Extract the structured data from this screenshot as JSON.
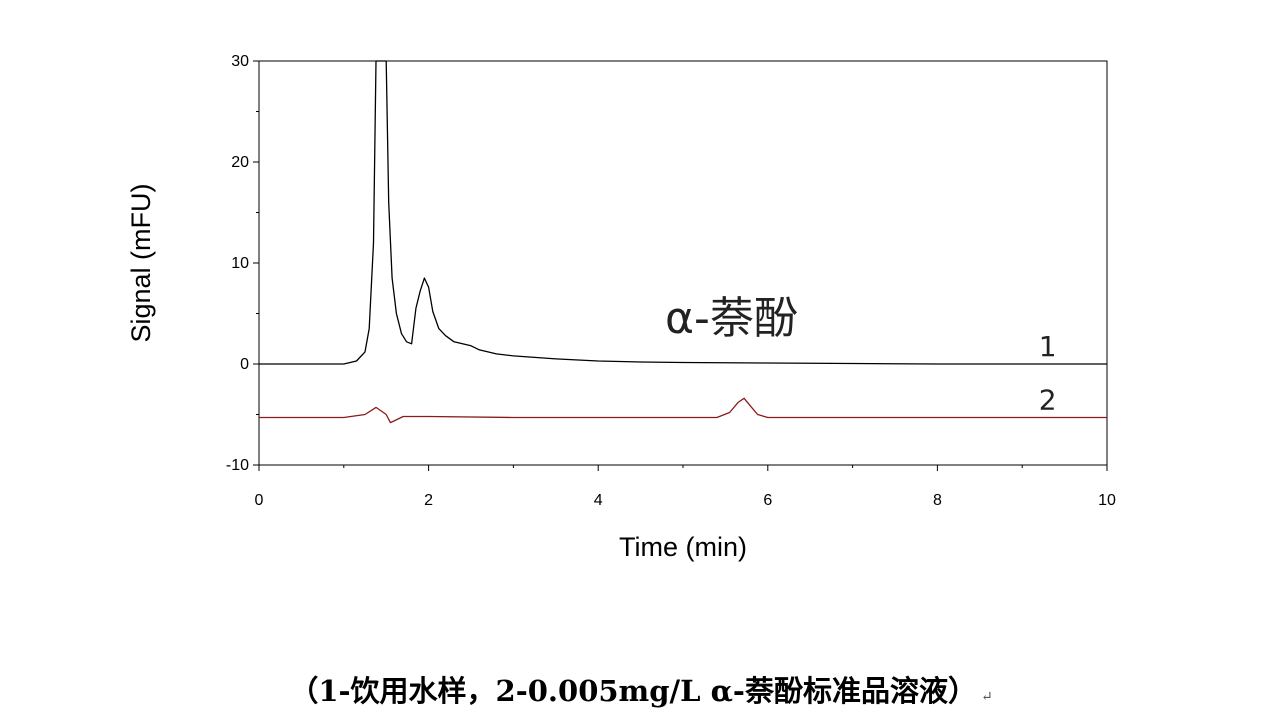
{
  "chart_data": {
    "type": "line",
    "title": "",
    "xlabel": "Time (min)",
    "ylabel": "Signal (mFU)",
    "xlim": [
      0,
      10
    ],
    "ylim": [
      -10,
      30
    ],
    "xticks": [
      0,
      2,
      4,
      6,
      8,
      10
    ],
    "yticks": [
      -10,
      0,
      10,
      20,
      30
    ],
    "grid": false,
    "annotation": "α-萘酚",
    "series": [
      {
        "name": "1",
        "color": "#000000",
        "x": [
          0.0,
          0.5,
          1.0,
          1.15,
          1.25,
          1.3,
          1.35,
          1.38,
          1.42,
          1.46,
          1.5,
          1.53,
          1.57,
          1.62,
          1.68,
          1.74,
          1.8,
          1.85,
          1.9,
          1.95,
          2.0,
          2.05,
          2.12,
          2.2,
          2.3,
          2.4,
          2.5,
          2.6,
          2.8,
          3.0,
          3.5,
          4.0,
          4.5,
          5.0,
          6.0,
          7.0,
          8.0,
          9.0,
          10.0
        ],
        "y": [
          0.0,
          0.0,
          0.0,
          0.3,
          1.2,
          3.5,
          12.0,
          30.0,
          30.0,
          30.0,
          30.0,
          16.0,
          8.5,
          5.0,
          3.0,
          2.2,
          2.0,
          5.5,
          7.2,
          8.5,
          7.6,
          5.2,
          3.5,
          2.8,
          2.2,
          2.0,
          1.8,
          1.4,
          1.0,
          0.8,
          0.5,
          0.3,
          0.2,
          0.15,
          0.1,
          0.05,
          0.0,
          0.0,
          0.0
        ]
      },
      {
        "name": "2",
        "color": "#8b1a1a",
        "x": [
          0.0,
          1.0,
          1.25,
          1.38,
          1.45,
          1.5,
          1.55,
          1.6,
          1.7,
          2.0,
          3.0,
          4.0,
          5.0,
          5.4,
          5.55,
          5.65,
          5.72,
          5.8,
          5.88,
          6.0,
          6.5,
          7.0,
          8.0,
          9.0,
          10.0
        ],
        "y": [
          -5.3,
          -5.3,
          -5.0,
          -4.3,
          -4.7,
          -5.0,
          -5.8,
          -5.6,
          -5.2,
          -5.2,
          -5.3,
          -5.3,
          -5.3,
          -5.3,
          -4.8,
          -3.8,
          -3.4,
          -4.2,
          -5.0,
          -5.3,
          -5.3,
          -5.3,
          -5.3,
          -5.3,
          -5.3
        ]
      }
    ]
  },
  "caption": {
    "text": "（1-饮用水样，2-0.005mg/L α-萘酚标准品溶液）",
    "mark": "↵"
  }
}
